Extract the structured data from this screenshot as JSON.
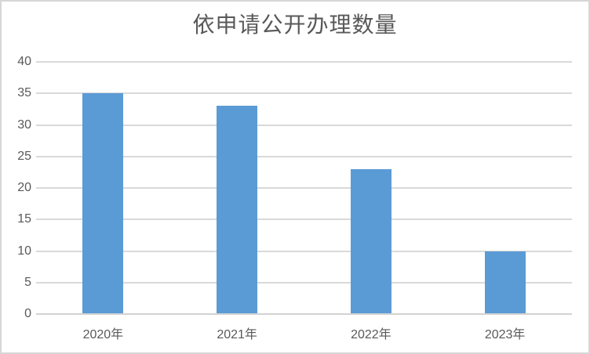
{
  "colors": {
    "bar": "#5B9BD5",
    "gridline": "#D9D9D9",
    "axis": "#D2D2D2",
    "text": "#595959",
    "border": "#D6D6D6",
    "background": "#FFFFFF"
  },
  "chart_data": {
    "type": "bar",
    "title": "依申请公开办理数量",
    "categories": [
      "2020年",
      "2021年",
      "2022年",
      "2023年"
    ],
    "values": [
      35,
      33,
      23,
      10
    ],
    "series": [
      {
        "name": "依申请公开办理数量",
        "values": [
          35,
          33,
          23,
          10
        ]
      }
    ],
    "xlabel": "",
    "ylabel": "",
    "ylim": [
      0,
      40
    ],
    "yticks": [
      0,
      5,
      10,
      15,
      20,
      25,
      30,
      35,
      40
    ],
    "grid": true,
    "legend_position": "none"
  }
}
